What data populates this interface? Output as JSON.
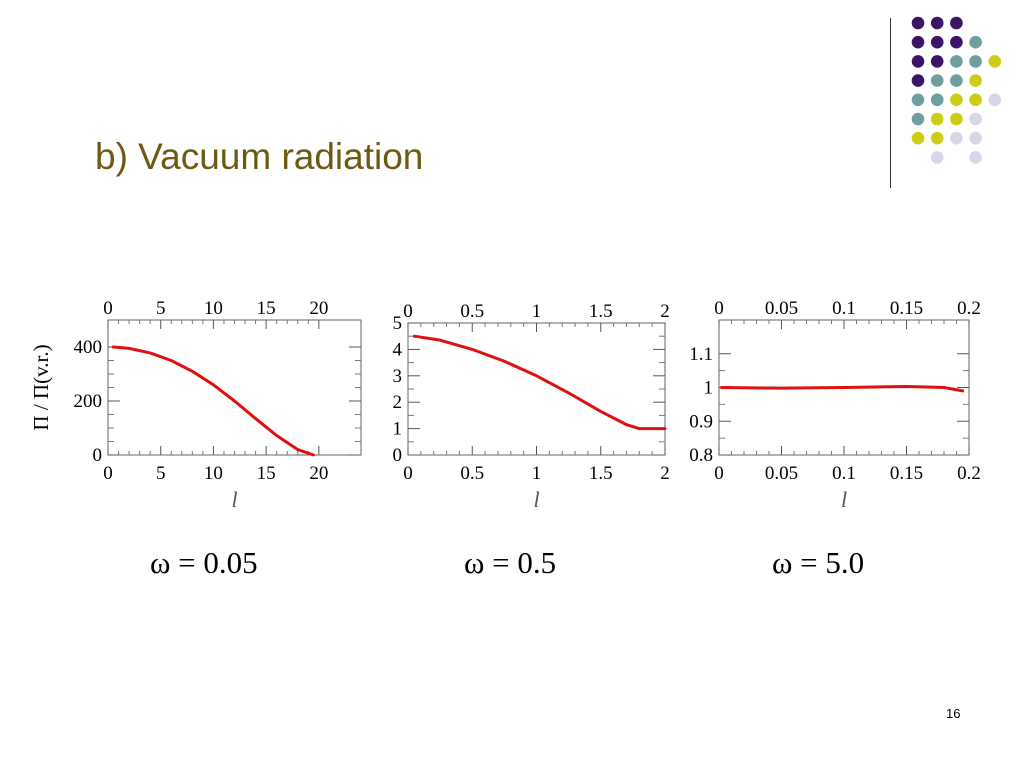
{
  "slide": {
    "title": "b) Vacuum radiation",
    "page_number": "16"
  },
  "decoration": {
    "colors": {
      "purple": "#3b1466",
      "teal": "#6e9e9e",
      "yellow": "#cccc14",
      "lavender": "#d6d6e6"
    },
    "grid": [
      [
        "purple",
        "purple",
        "purple",
        null,
        null
      ],
      [
        "purple",
        "purple",
        "purple",
        "teal",
        null
      ],
      [
        "purple",
        "purple",
        "teal",
        "teal",
        "yellow"
      ],
      [
        "purple",
        "teal",
        "teal",
        "yellow",
        null
      ],
      [
        "teal",
        "teal",
        "yellow",
        "yellow",
        "lavender"
      ],
      [
        "teal",
        "yellow",
        "yellow",
        "lavender",
        null
      ],
      [
        "yellow",
        "yellow",
        "lavender",
        "lavender",
        null
      ],
      [
        null,
        "lavender",
        null,
        "lavender",
        null
      ]
    ]
  },
  "chart_data": [
    {
      "type": "line",
      "caption": "ω = 0.05",
      "xlabel": "l",
      "ylabel": "Π / Π(v.r.)",
      "xlim": [
        0,
        24
      ],
      "ylim": [
        0,
        500
      ],
      "xticks": [
        0,
        5,
        10,
        15,
        20
      ],
      "xtick_labels": [
        "0",
        "5",
        "10",
        "15",
        "20"
      ],
      "yticks": [
        0,
        200,
        400
      ],
      "ytick_labels": [
        "0",
        "200",
        "400"
      ],
      "line_color": "#e01010",
      "series": [
        {
          "x": [
            0.5,
            2,
            4,
            6,
            8,
            10,
            12,
            14,
            16,
            18,
            19.5
          ],
          "y": [
            400,
            395,
            378,
            350,
            310,
            260,
            200,
            135,
            72,
            20,
            0
          ]
        }
      ]
    },
    {
      "type": "line",
      "caption": "ω = 0.5",
      "xlabel": "l",
      "ylabel": "",
      "xlim": [
        0,
        2
      ],
      "ylim": [
        0,
        5
      ],
      "xticks": [
        0,
        0.5,
        1,
        1.5,
        2
      ],
      "xtick_labels": [
        "0",
        "0.5",
        "1",
        "1.5",
        "2"
      ],
      "yticks": [
        0,
        1,
        2,
        3,
        4,
        5
      ],
      "ytick_labels": [
        "0",
        "1",
        "2",
        "3",
        "4",
        "5"
      ],
      "line_color": "#e01010",
      "series": [
        {
          "x": [
            0.05,
            0.25,
            0.5,
            0.75,
            1.0,
            1.25,
            1.5,
            1.7,
            1.8,
            1.9,
            2.0
          ],
          "y": [
            4.5,
            4.35,
            4.0,
            3.55,
            3.0,
            2.35,
            1.65,
            1.15,
            1.0,
            1.0,
            1.0
          ]
        }
      ]
    },
    {
      "type": "line",
      "caption": "ω = 5.0",
      "xlabel": "l",
      "ylabel": "",
      "xlim": [
        0,
        0.2
      ],
      "ylim": [
        0.8,
        1.2
      ],
      "xticks": [
        0,
        0.05,
        0.1,
        0.15,
        0.2
      ],
      "xtick_labels": [
        "0",
        "0.05",
        "0.1",
        "0.15",
        "0.2"
      ],
      "yticks": [
        0.8,
        0.9,
        1,
        1.1
      ],
      "ytick_labels": [
        "0.8",
        "0.9",
        "1",
        "1.1"
      ],
      "line_color": "#e01010",
      "series": [
        {
          "x": [
            0.002,
            0.05,
            0.1,
            0.15,
            0.18,
            0.195
          ],
          "y": [
            1.0,
            0.998,
            1.0,
            1.003,
            1.0,
            0.99
          ]
        }
      ]
    }
  ]
}
